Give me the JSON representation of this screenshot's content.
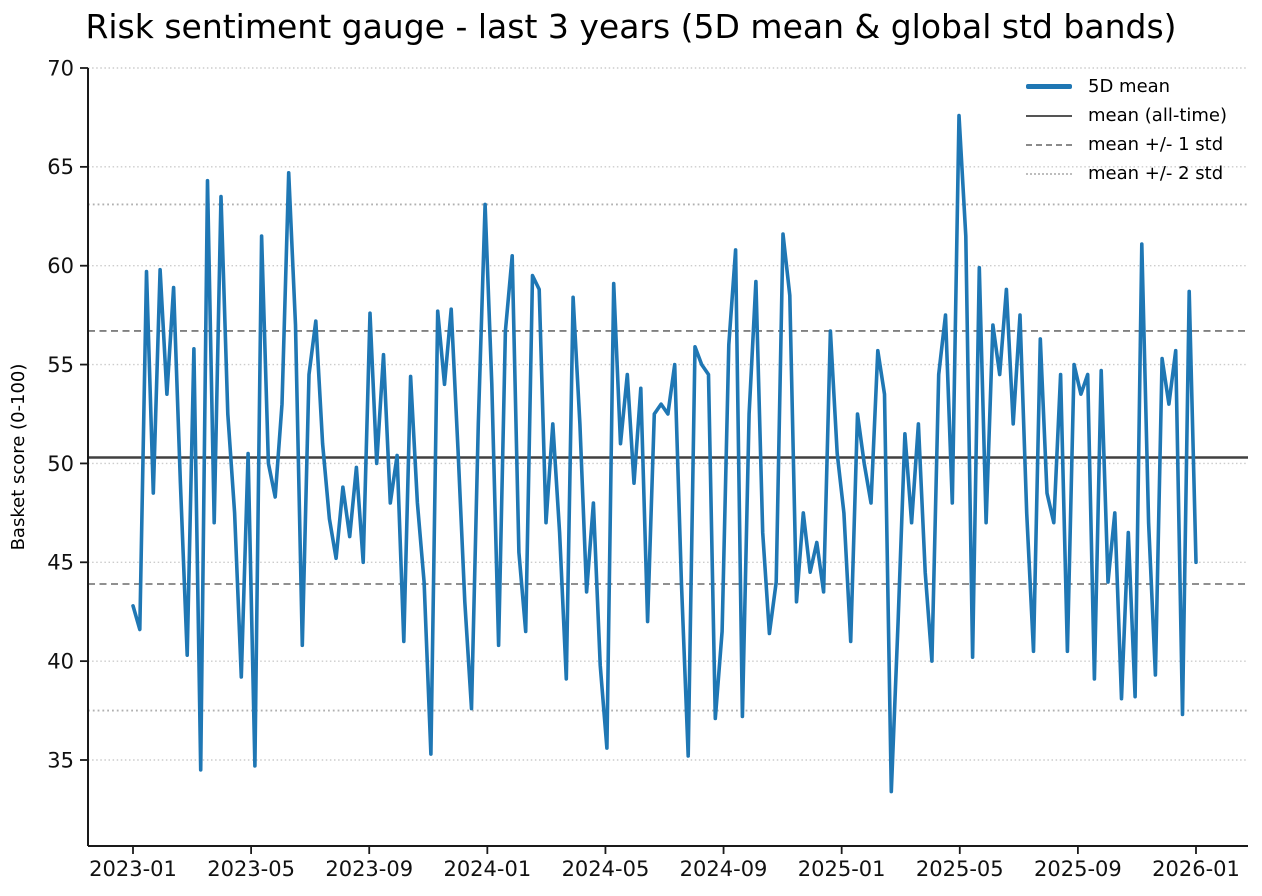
{
  "chart_data": {
    "type": "line",
    "title": "Risk sentiment gauge - last 3 years (5D mean & global std bands)",
    "xlabel": "",
    "ylabel": "Basket score (0-100)",
    "ylim": [
      30.6,
      70
    ],
    "yticks": [
      70,
      65,
      60,
      55,
      50,
      45,
      40,
      35
    ],
    "xticks": [
      "2023-01",
      "2023-05",
      "2023-09",
      "2024-01",
      "2024-05",
      "2024-09",
      "2025-01",
      "2025-05",
      "2025-09",
      "2026-01"
    ],
    "grid": "horizontal dotted gridlines at every y tick",
    "legend_position": "upper right, frameless",
    "series": [
      {
        "name": "5D mean",
        "color": "#1f77b4",
        "x_start": "2023-01-01",
        "x_end": "2026-01-01",
        "sampling": "approx weekly values read from plot",
        "values": [
          42.8,
          41.6,
          59.7,
          48.5,
          59.8,
          53.5,
          58.9,
          49.0,
          40.3,
          55.8,
          34.5,
          64.3,
          47.0,
          63.5,
          52.5,
          47.5,
          39.2,
          50.5,
          34.7,
          61.5,
          50.0,
          48.3,
          53.0,
          64.7,
          57.0,
          40.8,
          54.5,
          57.2,
          51.0,
          47.2,
          45.2,
          48.8,
          46.3,
          49.8,
          45.0,
          57.6,
          50.0,
          55.5,
          48.0,
          50.4,
          41.0,
          54.4,
          48.0,
          44.0,
          35.3,
          57.7,
          54.0,
          57.8,
          50.7,
          43.0,
          37.6,
          52.0,
          63.1,
          54.0,
          40.8,
          56.7,
          60.5,
          45.5,
          41.5,
          59.5,
          58.8,
          47.0,
          52.0,
          46.5,
          39.1,
          58.4,
          52.0,
          43.5,
          48.0,
          39.8,
          35.6,
          59.1,
          51.0,
          54.5,
          49.0,
          53.8,
          42.0,
          52.5,
          53.0,
          52.5,
          55.0,
          44.0,
          35.2,
          55.9,
          55.0,
          54.5,
          37.1,
          41.5,
          56.0,
          60.8,
          37.2,
          52.5,
          59.2,
          46.5,
          41.4,
          44.0,
          61.6,
          58.5,
          43.0,
          47.5,
          44.5,
          46.0,
          43.5,
          56.7,
          50.5,
          47.5,
          41.0,
          52.5,
          50.0,
          48.0,
          55.7,
          53.5,
          33.4,
          42.0,
          51.5,
          47.0,
          52.0,
          44.5,
          40.0,
          54.5,
          57.5,
          48.0,
          67.6,
          61.5,
          40.2,
          59.9,
          47.0,
          57.0,
          54.5,
          58.8,
          52.0,
          57.5,
          47.5,
          40.5,
          56.3,
          48.5,
          47.0,
          54.5,
          40.5,
          55.0,
          53.5,
          54.5,
          39.1,
          54.7,
          44.0,
          47.5,
          38.1,
          46.5,
          38.2,
          61.1,
          47.0,
          39.3,
          55.3,
          53.0,
          55.7,
          37.3,
          58.7,
          45.0
        ]
      }
    ],
    "reference_lines": [
      {
        "name": "mean (all-time)",
        "value": 50.3,
        "style": "solid",
        "color": "#404040"
      },
      {
        "name": "mean + 1 std",
        "value": 56.7,
        "style": "dashed",
        "color": "#808080"
      },
      {
        "name": "mean - 1 std",
        "value": 43.9,
        "style": "dashed",
        "color": "#808080"
      },
      {
        "name": "mean + 2 std",
        "value": 63.1,
        "style": "dotted",
        "color": "#b0b0b0"
      },
      {
        "name": "mean - 2 std",
        "value": 37.5,
        "style": "dotted",
        "color": "#b0b0b0"
      }
    ],
    "stats": {
      "mean_all_time": 50.3,
      "std": 6.4,
      "visible_min": 33.4,
      "visible_max": 67.6
    },
    "legend": [
      {
        "label": "5D mean",
        "swatch": "thick"
      },
      {
        "label": "mean (all-time)",
        "swatch": "solid"
      },
      {
        "label": "mean +/- 1 std",
        "swatch": "dashed"
      },
      {
        "label": "mean +/- 2 std",
        "swatch": "dotted"
      }
    ],
    "colors": {
      "series": "#1f77b4",
      "grid": "#cccccc",
      "spine": "#1a1a1a"
    }
  }
}
